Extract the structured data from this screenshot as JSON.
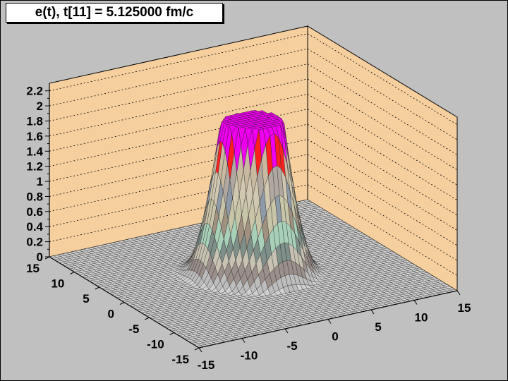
{
  "chart_data": {
    "type": "surface",
    "title": "e(t), t[11] = 5.125000 fm/c",
    "xlim": [
      -15,
      15
    ],
    "ylim": [
      -15,
      15
    ],
    "zlim": [
      0,
      2.3
    ],
    "x_ticks": [
      "-15",
      "-10",
      "-5",
      "0",
      "5",
      "10",
      "15"
    ],
    "y_ticks": [
      "-15",
      "-10",
      "-5",
      "0",
      "5",
      "10",
      "15"
    ],
    "z_ticks": [
      "0",
      "0.2",
      "0.4",
      "0.6",
      "0.8",
      "1",
      "1.2",
      "1.4",
      "1.6",
      "1.8",
      "2",
      "2.2"
    ],
    "grid": true,
    "peaks": [
      {
        "x": -1.5,
        "y": 1.5,
        "z": 1.85
      },
      {
        "x": 1.5,
        "y": 1.5,
        "z": 1.85
      },
      {
        "x": 1.0,
        "y": -1.2,
        "z": 1.78
      }
    ],
    "colors": {
      "walls": "#f5cf9e",
      "floor": "#c0c0c0",
      "peak_top": "#ee00ee",
      "peak_band": "#ff2020"
    }
  }
}
